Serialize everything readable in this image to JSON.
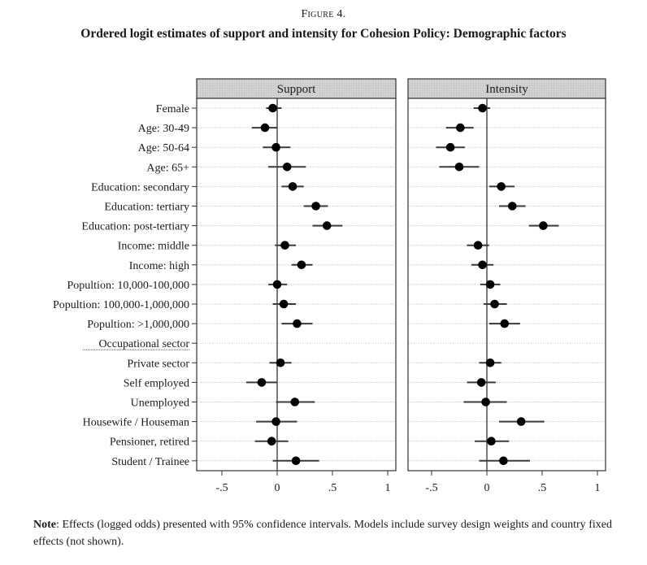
{
  "figure": {
    "number": "Figure 4.",
    "title": "Ordered logit estimates of support and intensity for Cohesion Policy: Demographic factors",
    "note_label": "Note",
    "note_text": ": Effects (logged odds) presented with 95% confidence intervals. Models include survey design weights and country fixed effects (not shown)."
  },
  "chart_data": {
    "type": "scatter",
    "subtype": "coefficient-plot-with-confidence-intervals",
    "title": "Ordered logit estimates of support and intensity for Cohesion Policy: Demographic factors",
    "xlabel": "",
    "ylabel": "",
    "xlim": [
      -0.7,
      1.07
    ],
    "xticks": [
      -0.5,
      0,
      0.5,
      1
    ],
    "xtick_labels": [
      "-.5",
      "0",
      ".5",
      "1"
    ],
    "reference_line": 0,
    "grid": true,
    "legend": null,
    "categories": [
      "Female",
      "Age: 30-49",
      "Age: 50-64",
      "Age: 65+",
      "Education: secondary",
      "Education: tertiary",
      "Education: post-tertiary",
      "Income: middle",
      "Income: high",
      "Popultion: 10,000-100,000",
      "Popultion: 100,000-1,000,000",
      "Popultion: >1,000,000",
      "Occupational sector",
      "Private sector",
      "Self employed",
      "Unemployed",
      "Housewife / Houseman",
      "Pensioner, retired",
      "Student / Trainee"
    ],
    "header_category_index": 12,
    "panels": [
      {
        "name": "Support",
        "estimates": [
          -0.04,
          -0.11,
          -0.01,
          0.09,
          0.14,
          0.35,
          0.45,
          0.07,
          0.22,
          0.0,
          0.06,
          0.18,
          null,
          0.03,
          -0.14,
          0.16,
          -0.01,
          -0.05,
          0.17
        ],
        "ci_low": [
          -0.1,
          -0.23,
          -0.13,
          -0.08,
          0.04,
          0.24,
          0.32,
          -0.02,
          0.13,
          -0.08,
          -0.04,
          0.04,
          null,
          -0.07,
          -0.28,
          -0.01,
          -0.19,
          -0.2,
          -0.04
        ],
        "ci_high": [
          0.04,
          0.0,
          0.12,
          0.26,
          0.24,
          0.46,
          0.59,
          0.17,
          0.32,
          0.09,
          0.17,
          0.32,
          null,
          0.13,
          0.0,
          0.34,
          0.18,
          0.1,
          0.38
        ]
      },
      {
        "name": "Intensity",
        "estimates": [
          -0.04,
          -0.24,
          -0.33,
          -0.25,
          0.13,
          0.23,
          0.51,
          -0.08,
          -0.04,
          0.03,
          0.07,
          0.16,
          null,
          0.03,
          -0.05,
          -0.01,
          0.31,
          0.04,
          0.15
        ],
        "ci_low": [
          -0.12,
          -0.37,
          -0.46,
          -0.43,
          0.02,
          0.11,
          0.38,
          -0.18,
          -0.14,
          -0.06,
          -0.03,
          0.02,
          null,
          -0.07,
          -0.18,
          -0.21,
          0.11,
          -0.11,
          -0.07
        ],
        "ci_high": [
          0.03,
          -0.12,
          -0.2,
          -0.07,
          0.25,
          0.35,
          0.65,
          0.02,
          0.06,
          0.12,
          0.18,
          0.3,
          null,
          0.13,
          0.08,
          0.18,
          0.52,
          0.2,
          0.39
        ]
      }
    ]
  }
}
